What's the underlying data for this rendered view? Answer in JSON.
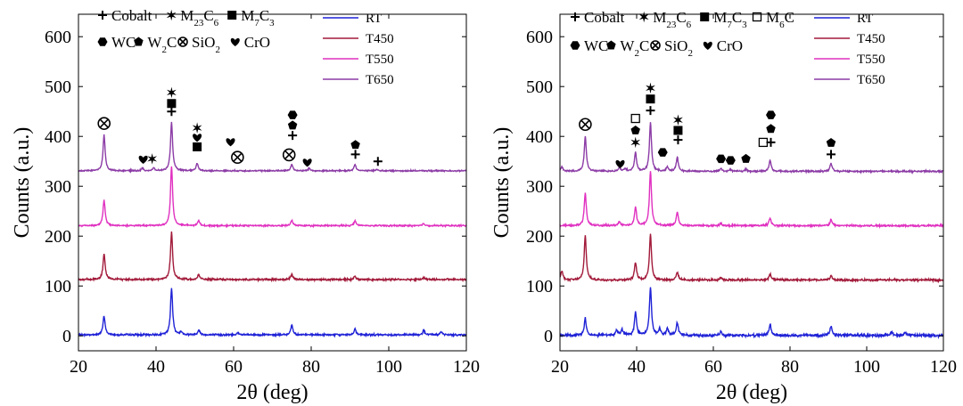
{
  "chart_data": [
    {
      "type": "line",
      "panel": "left",
      "xlabel": "2θ (deg)",
      "ylabel": "Counts (a.u.)",
      "xlim": [
        20,
        120
      ],
      "ylim": [
        -30,
        645
      ],
      "xticks": [
        20,
        40,
        60,
        80,
        100,
        120
      ],
      "yticks": [
        0,
        100,
        200,
        300,
        400,
        500,
        600
      ],
      "legend_position": "top-right",
      "series": [
        {
          "name": "RT",
          "color": "#1f22d6",
          "baseline": 2,
          "noise": 2.2,
          "peaks": [
            [
              26.6,
              38
            ],
            [
              44.0,
              95
            ],
            [
              46.5,
              6
            ],
            [
              51.0,
              10
            ],
            [
              61.0,
              4
            ],
            [
              75.0,
              20
            ],
            [
              91.3,
              12
            ],
            [
              109.0,
              9
            ],
            [
              113.5,
              6
            ]
          ]
        },
        {
          "name": "T450",
          "color": "#a21a3a",
          "baseline": 113,
          "noise": 2.2,
          "peaks": [
            [
              26.6,
              52
            ],
            [
              44.0,
              95
            ],
            [
              51.0,
              10
            ],
            [
              75.0,
              10
            ],
            [
              91.3,
              7
            ],
            [
              109.0,
              4
            ]
          ]
        },
        {
          "name": "T550",
          "color": "#e030c0",
          "baseline": 221,
          "noise": 1.8,
          "peaks": [
            [
              26.6,
              52
            ],
            [
              44.0,
              120
            ],
            [
              51.0,
              10
            ],
            [
              75.0,
              10
            ],
            [
              91.3,
              10
            ],
            [
              109.0,
              4
            ]
          ]
        },
        {
          "name": "T650",
          "color": "#8c3ca6",
          "baseline": 331,
          "noise": 1.6,
          "peaks": [
            [
              26.6,
              72
            ],
            [
              36.5,
              5
            ],
            [
              39.4,
              5
            ],
            [
              44.0,
              98
            ],
            [
              50.6,
              15
            ],
            [
              75.0,
              13
            ],
            [
              79.5,
              5
            ],
            [
              91.3,
              13
            ],
            [
              97.0,
              3
            ]
          ]
        }
      ],
      "phase_legend": [
        {
          "symbol": "plus",
          "label": "Cobalt"
        },
        {
          "symbol": "star6",
          "label": "M23C6"
        },
        {
          "symbol": "square",
          "label": "M7C3"
        },
        {
          "symbol": "hexagon",
          "label": "WC"
        },
        {
          "symbol": "pentagon",
          "label": "W2C"
        },
        {
          "symbol": "otimes",
          "label": "SiO2"
        },
        {
          "symbol": "heart",
          "label": "CrO"
        }
      ],
      "annotations": [
        {
          "symbol": "otimes",
          "x": 26.6,
          "y": 426
        },
        {
          "symbol": "heart",
          "x": 36.7,
          "y": 354
        },
        {
          "symbol": "star6",
          "x": 39.0,
          "y": 355
        },
        {
          "symbol": "plus",
          "x": 44.0,
          "y": 450
        },
        {
          "symbol": "square",
          "x": 44.0,
          "y": 466
        },
        {
          "symbol": "star6",
          "x": 44.0,
          "y": 488
        },
        {
          "symbol": "square",
          "x": 50.6,
          "y": 379
        },
        {
          "symbol": "heart",
          "x": 50.6,
          "y": 398
        },
        {
          "symbol": "star6",
          "x": 50.6,
          "y": 417
        },
        {
          "symbol": "heart",
          "x": 59.2,
          "y": 389
        },
        {
          "symbol": "otimes",
          "x": 61.0,
          "y": 358
        },
        {
          "symbol": "otimes",
          "x": 74.3,
          "y": 363
        },
        {
          "symbol": "plus",
          "x": 75.2,
          "y": 402
        },
        {
          "symbol": "pentagon",
          "x": 75.2,
          "y": 422
        },
        {
          "symbol": "hexagon",
          "x": 75.2,
          "y": 443
        },
        {
          "symbol": "heart",
          "x": 79.0,
          "y": 348
        },
        {
          "symbol": "plus",
          "x": 91.4,
          "y": 364
        },
        {
          "symbol": "pentagon",
          "x": 91.4,
          "y": 383
        },
        {
          "symbol": "plus",
          "x": 97.2,
          "y": 350
        }
      ]
    },
    {
      "type": "line",
      "panel": "right",
      "xlabel": "2θ (deg)",
      "ylabel": "Counts (a.u.)",
      "xlim": [
        20,
        120
      ],
      "ylim": [
        -30,
        645
      ],
      "xticks": [
        20,
        40,
        60,
        80,
        100,
        120
      ],
      "yticks": [
        0,
        100,
        200,
        300,
        400,
        500,
        600
      ],
      "legend_position": "top-right",
      "series": [
        {
          "name": "RT",
          "color": "#1f22d6",
          "baseline": 1,
          "noise": 3.2,
          "peaks": [
            [
              26.6,
              35
            ],
            [
              34.8,
              10
            ],
            [
              36.2,
              12
            ],
            [
              39.7,
              47
            ],
            [
              43.6,
              97
            ],
            [
              46.0,
              12
            ],
            [
              48.0,
              12
            ],
            [
              50.6,
              25
            ],
            [
              62.0,
              7
            ],
            [
              74.8,
              22
            ],
            [
              90.7,
              17
            ],
            [
              106.5,
              7
            ],
            [
              110.0,
              6
            ]
          ]
        },
        {
          "name": "T450",
          "color": "#a21a3a",
          "baseline": 112,
          "noise": 2.4,
          "peaks": [
            [
              20.5,
              18
            ],
            [
              26.6,
              90
            ],
            [
              39.7,
              35
            ],
            [
              43.6,
              93
            ],
            [
              50.6,
              15
            ],
            [
              62.0,
              5
            ],
            [
              74.8,
              12
            ],
            [
              90.7,
              8
            ]
          ]
        },
        {
          "name": "T550",
          "color": "#e030c0",
          "baseline": 221,
          "noise": 2.2,
          "peaks": [
            [
              26.6,
              66
            ],
            [
              35.5,
              8
            ],
            [
              39.7,
              37
            ],
            [
              43.6,
              110
            ],
            [
              50.6,
              27
            ],
            [
              62.0,
              5
            ],
            [
              74.8,
              16
            ],
            [
              90.7,
              12
            ]
          ]
        },
        {
          "name": "T650",
          "color": "#8c3ca6",
          "baseline": 330,
          "noise": 2.0,
          "peaks": [
            [
              20.5,
              9
            ],
            [
              26.6,
              70
            ],
            [
              35.5,
              8
            ],
            [
              37.0,
              6
            ],
            [
              39.7,
              38
            ],
            [
              43.6,
              98
            ],
            [
              48.0,
              8
            ],
            [
              50.6,
              28
            ],
            [
              62.0,
              6
            ],
            [
              64.5,
              4
            ],
            [
              68.5,
              4
            ],
            [
              74.8,
              22
            ],
            [
              90.7,
              16
            ]
          ]
        }
      ],
      "phase_legend": [
        {
          "symbol": "plus",
          "label": "Cobalt"
        },
        {
          "symbol": "star6",
          "label": "M23C6"
        },
        {
          "symbol": "square",
          "label": "M7C3"
        },
        {
          "symbol": "hollow-square",
          "label": "M6C"
        },
        {
          "symbol": "hexagon",
          "label": "WC"
        },
        {
          "symbol": "pentagon",
          "label": "W2C"
        },
        {
          "symbol": "otimes",
          "label": "SiO2"
        },
        {
          "symbol": "heart",
          "label": "CrO"
        }
      ],
      "annotations": [
        {
          "symbol": "otimes",
          "x": 26.6,
          "y": 424
        },
        {
          "symbol": "heart",
          "x": 35.7,
          "y": 345
        },
        {
          "symbol": "star6",
          "x": 39.7,
          "y": 388
        },
        {
          "symbol": "pentagon",
          "x": 39.7,
          "y": 412
        },
        {
          "symbol": "hollow-square",
          "x": 39.7,
          "y": 436
        },
        {
          "symbol": "plus",
          "x": 43.6,
          "y": 452
        },
        {
          "symbol": "square",
          "x": 43.6,
          "y": 475
        },
        {
          "symbol": "star6",
          "x": 43.6,
          "y": 497
        },
        {
          "symbol": "hexagon",
          "x": 46.8,
          "y": 368
        },
        {
          "symbol": "plus",
          "x": 50.8,
          "y": 393
        },
        {
          "symbol": "square",
          "x": 50.8,
          "y": 412
        },
        {
          "symbol": "star6",
          "x": 50.8,
          "y": 433
        },
        {
          "symbol": "hexagon",
          "x": 62.0,
          "y": 355
        },
        {
          "symbol": "hexagon",
          "x": 64.5,
          "y": 352
        },
        {
          "symbol": "pentagon",
          "x": 68.5,
          "y": 355
        },
        {
          "symbol": "hollow-square",
          "x": 73.0,
          "y": 388
        },
        {
          "symbol": "plus",
          "x": 75.0,
          "y": 388
        },
        {
          "symbol": "pentagon",
          "x": 75.0,
          "y": 415
        },
        {
          "symbol": "hexagon",
          "x": 75.0,
          "y": 443
        },
        {
          "symbol": "plus",
          "x": 90.7,
          "y": 364
        },
        {
          "symbol": "pentagon",
          "x": 90.7,
          "y": 387
        }
      ]
    }
  ]
}
